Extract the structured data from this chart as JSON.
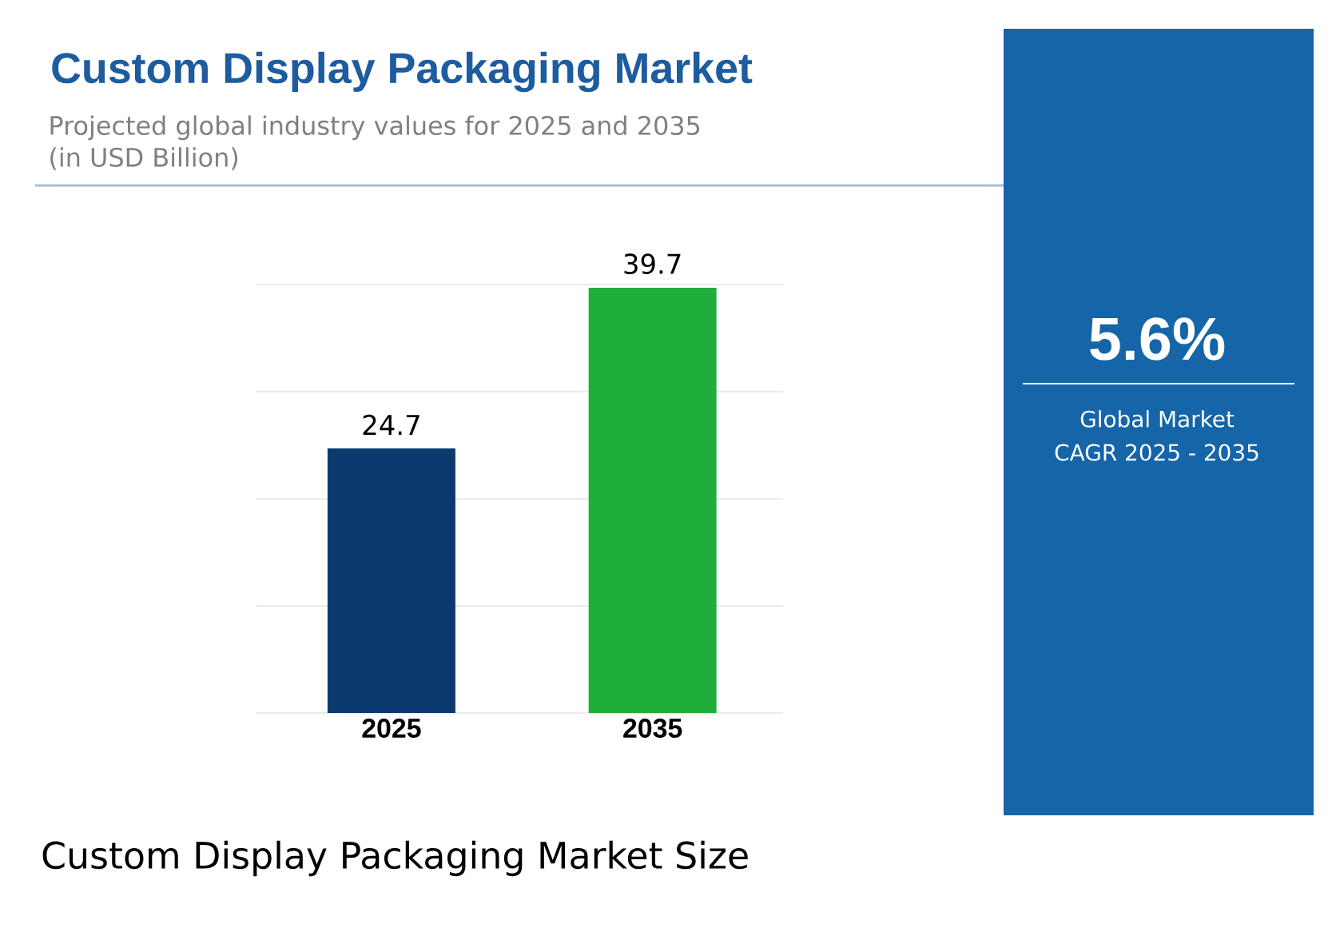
{
  "chart_data": {
    "type": "bar",
    "title": "Custom Display Packaging Market",
    "subtitle": "Projected global industry values for 2025 and 2035\n(in USD Billion)",
    "categories": [
      "2025",
      "2035"
    ],
    "values": [
      24.7,
      39.7
    ],
    "colors": [
      "#0b3a6e",
      "#1fae3c"
    ],
    "data_labels": true,
    "ylim": [
      0,
      40
    ],
    "yticks": [
      {
        "value": 0,
        "label": null
      },
      {
        "value": 10,
        "label": null
      },
      {
        "value": 20,
        "label": null
      },
      {
        "value": 30,
        "label": null
      },
      {
        "value": 40,
        "label": null
      }
    ],
    "grid": "y",
    "tick_labels": "x",
    "annotations": [
      "5.6%",
      "Global Market",
      "CAGR 2025 - 2035",
      "Custom Display Packaging Market Size"
    ]
  }
}
